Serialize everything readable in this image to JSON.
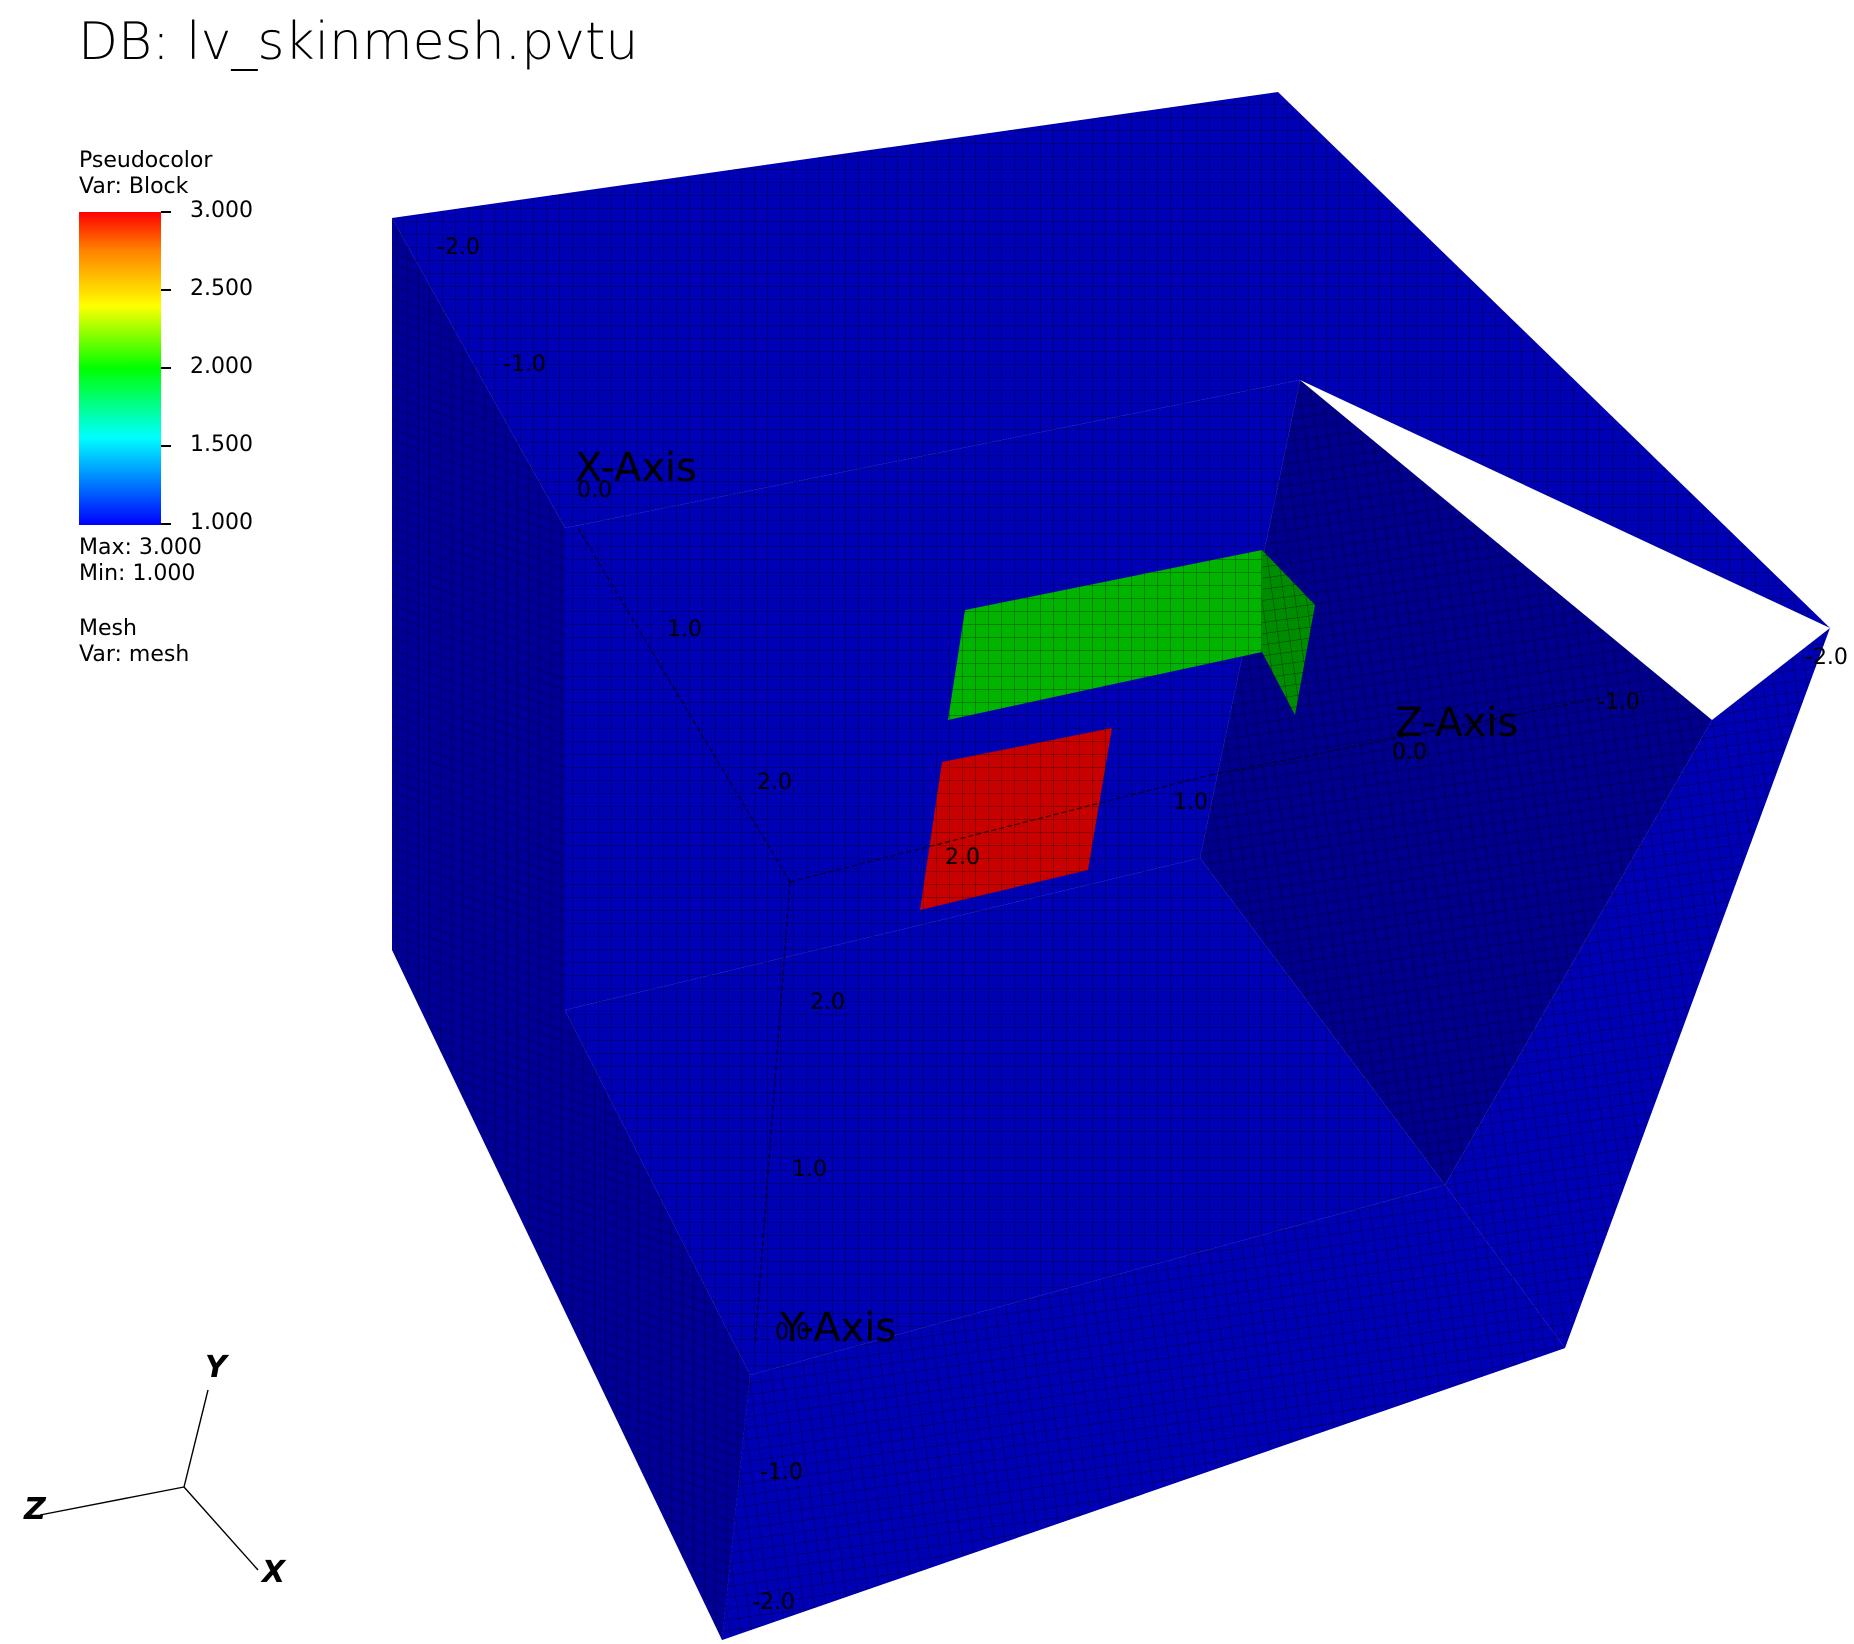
{
  "title": "DB: lv_skinmesh.pvtu",
  "legend": {
    "plot1_name": "Pseudocolor",
    "plot1_var": "Var: Block",
    "ticks": [
      "3.000",
      "2.500",
      "2.000",
      "1.500",
      "1.000"
    ],
    "max_label": "Max:  3.000",
    "min_label": "Min:  1.000",
    "plot2_name": "Mesh",
    "plot2_var": "Var: mesh"
  },
  "axis_titles": {
    "x": "X-Axis",
    "y": "Y-Axis",
    "z": "Z-Axis"
  },
  "axis_ticks": {
    "x": [
      "-2.0",
      "-1.0",
      "0.0",
      "1.0",
      "2.0"
    ],
    "z": [
      "-2.0",
      "-1.0",
      "0.0",
      "1.0",
      "2.0"
    ],
    "y": [
      "2.0",
      "1.0",
      "0.0",
      "-1.0",
      "-2.0"
    ]
  },
  "triad": {
    "x": "X",
    "y": "Y",
    "z": "Z"
  },
  "colors": {
    "block1": "#0000b4",
    "block1_shadow": "#000090",
    "block2": "#00b400",
    "block3": "#c80000",
    "mesh_line": "#000000"
  }
}
